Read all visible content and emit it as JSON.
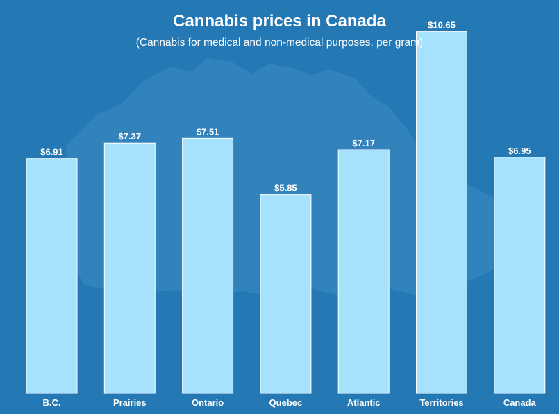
{
  "colors": {
    "background": "#2479b4",
    "map_silhouette": "#3584bd",
    "bar_fill": "#a6e1fd",
    "bar_stroke": "#ffffff",
    "text": "#ffffff"
  },
  "chart_data": {
    "type": "bar",
    "title": "Cannabis prices in Canada",
    "subtitle": "(Cannabis for medical and non-medical purposes, per gram)",
    "categories": [
      "B.C.",
      "Prairies",
      "Ontario",
      "Quebec",
      "Atlantic",
      "Territories",
      "Canada"
    ],
    "values": [
      6.91,
      7.37,
      7.51,
      5.85,
      7.17,
      10.65,
      6.95
    ],
    "value_labels": [
      "$6.91",
      "$7.37",
      "$7.51",
      "$5.85",
      "$7.17",
      "$10.65",
      "$6.95"
    ],
    "xlabel": "",
    "ylabel": "",
    "ylim": [
      0,
      11.5
    ],
    "grid": false,
    "legend": "none",
    "background_decoration": "map-of-canada"
  }
}
